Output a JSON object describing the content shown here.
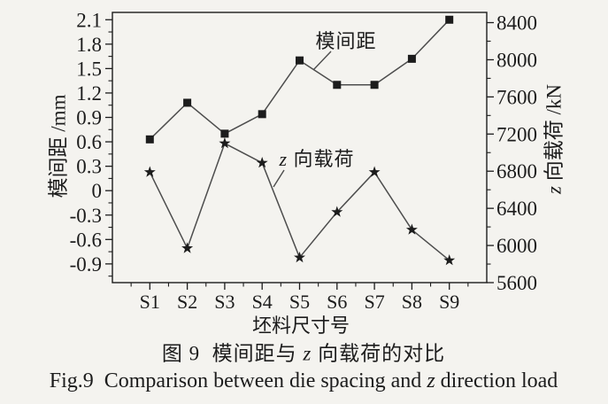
{
  "figure": {
    "background": "#f4f3ef",
    "ink_color": "#1c1c1c",
    "line_color": "#4d4d4d"
  },
  "chart_data": {
    "type": "line",
    "title": "图 9 模间距与 z 向载荷的对比",
    "categories": [
      "S1",
      "S2",
      "S3",
      "S4",
      "S5",
      "S6",
      "S7",
      "S8",
      "S9"
    ],
    "series": [
      {
        "name": "模间距",
        "axis": "left",
        "marker": "square",
        "unit": "mm",
        "values": [
          0.63,
          1.08,
          0.7,
          0.94,
          1.6,
          1.3,
          1.3,
          1.62,
          2.1
        ]
      },
      {
        "name": "z 向载荷",
        "axis": "right",
        "marker": "star",
        "unit": "kN",
        "values": [
          6790,
          5970,
          7100,
          6890,
          5870,
          6360,
          6790,
          6170,
          5840
        ]
      }
    ],
    "left_axis": {
      "label": "模间距 /mm",
      "ticks": [
        "2.1",
        "1.8",
        "1.5",
        "1.2",
        "0.9",
        "0.6",
        "0.3",
        "0",
        "-0.3",
        "-0.6",
        "-0.9"
      ],
      "range": [
        -1.13,
        2.19
      ],
      "minor_step": 0.15
    },
    "right_axis": {
      "label_parts": [
        "z",
        " 向载荷 /kN"
      ],
      "ticks": [
        "8400",
        "8000",
        "7600",
        "7200",
        "6800",
        "6400",
        "6000",
        "5600"
      ],
      "range": [
        5600,
        8510
      ],
      "minor_step": 200
    },
    "x_axis": {
      "label": "坯料尺寸号"
    },
    "grid": false,
    "legend": "inline-annotations",
    "annotations": [
      {
        "parts": [
          {
            "t": "模间距"
          }
        ],
        "x": 391,
        "y": 46,
        "leader": [
          374,
          58,
          354,
          79
        ]
      },
      {
        "parts": [
          {
            "t": "z",
            "italic": true
          },
          {
            "t": " 向载荷"
          }
        ],
        "x": 358,
        "y": 179,
        "leader": [
          321,
          192,
          309,
          211
        ]
      }
    ]
  },
  "captions": {
    "cn_parts": [
      "图 9  模间距与 ",
      "z",
      " 向载荷的对比"
    ],
    "en_parts": [
      "Fig.9  Comparison between die spacing and ",
      "z",
      " direction load"
    ]
  }
}
